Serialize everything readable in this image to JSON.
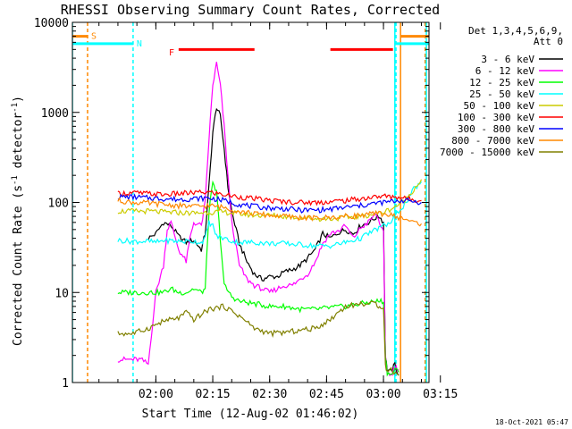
{
  "chart_data": {
    "type": "line",
    "title": "RHESSI Observing Summary Count Rates, Corrected",
    "xlabel": "Start Time (12-Aug-02 01:46:02)",
    "ylabel_main": "Corrected Count Rate (s",
    "ylabel_sup1": "-1",
    "ylabel_mid": " detector",
    "ylabel_sup2": "-1",
    "ylabel_end": ")",
    "yscale": "log",
    "ylim": [
      1,
      10000
    ],
    "xlim_minutes": [
      -8,
      86
    ],
    "yticks": [
      {
        "value": 1,
        "label": "1"
      },
      {
        "value": 10,
        "label": "10"
      },
      {
        "value": 100,
        "label": "100"
      },
      {
        "value": 1000,
        "label": "1000"
      },
      {
        "value": 10000,
        "label": "10000"
      }
    ],
    "xticks": [
      {
        "value": 14,
        "label": "02:00"
      },
      {
        "value": 29,
        "label": "02:15"
      },
      {
        "value": 44,
        "label": "02:30"
      },
      {
        "value": 59,
        "label": "02:45"
      },
      {
        "value": 74,
        "label": "03:00"
      },
      {
        "value": 89,
        "label": "03:15"
      }
    ],
    "legend_title_1": "Det 1,3,4,5,6,9,",
    "legend_title_2": "Att 0",
    "timestamp": "18-Oct-2021 05:47",
    "series": [
      {
        "name": "3 - 6 keV",
        "color": "#000000",
        "x": [
          12,
          14,
          16,
          18,
          20,
          22,
          24,
          26,
          27,
          28,
          29,
          30,
          31,
          32,
          33,
          34,
          36,
          38,
          40,
          42,
          44,
          46,
          48,
          50,
          52,
          54,
          56,
          58,
          60,
          62,
          64,
          66,
          68,
          70,
          72,
          73,
          74,
          74.5,
          75,
          76,
          77,
          78
        ],
        "y": [
          40,
          45,
          60,
          55,
          42,
          36,
          38,
          30,
          45,
          150,
          600,
          1150,
          900,
          400,
          150,
          80,
          35,
          22,
          16,
          14,
          15,
          15,
          17,
          18,
          20,
          24,
          30,
          45,
          40,
          46,
          50,
          45,
          55,
          60,
          68,
          70,
          60,
          2,
          1.4,
          1.3,
          1.6,
          1.2
        ]
      },
      {
        "name": "6 - 12 keV",
        "color": "#ff00ff",
        "x": [
          4,
          6,
          8,
          10,
          12,
          14,
          16,
          17,
          18,
          20,
          22,
          23,
          24,
          26,
          27,
          28,
          29,
          30,
          31,
          32,
          33,
          34,
          36,
          38,
          40,
          42,
          44,
          46,
          48,
          50,
          52,
          54,
          56,
          58,
          60,
          62,
          64,
          66,
          68,
          70,
          72,
          73,
          74,
          74.5,
          75,
          76,
          77,
          78
        ],
        "y": [
          1.8,
          1.8,
          1.8,
          1.8,
          1.6,
          10,
          20,
          50,
          60,
          30,
          22,
          40,
          60,
          55,
          100,
          500,
          2000,
          3500,
          2000,
          700,
          200,
          60,
          20,
          14,
          12,
          11,
          10,
          11,
          12,
          12,
          14,
          16,
          22,
          35,
          45,
          48,
          55,
          40,
          52,
          60,
          75,
          60,
          45,
          2,
          1.3,
          1.2,
          1.5,
          1.4
        ]
      },
      {
        "name": "12 - 25 keV",
        "color": "#00ff00",
        "x": [
          4,
          8,
          12,
          14,
          16,
          18,
          20,
          22,
          24,
          26,
          27,
          28,
          29,
          30,
          31,
          32,
          34,
          36,
          40,
          44,
          48,
          52,
          56,
          60,
          64,
          68,
          72,
          73,
          74,
          74.5,
          75,
          76,
          77,
          78
        ],
        "y": [
          10,
          10,
          10,
          10,
          10,
          11,
          10,
          10,
          11,
          10,
          11,
          80,
          160,
          130,
          40,
          12,
          9,
          8,
          7.5,
          7,
          7,
          6.5,
          6.5,
          6.8,
          7,
          7.5,
          8,
          8,
          8,
          2,
          1.3,
          1.2,
          1.4,
          1.3
        ]
      },
      {
        "name": "25 - 50 keV",
        "color": "#00ffff",
        "x": [
          4,
          8,
          12,
          14,
          16,
          20,
          24,
          26,
          27,
          28,
          29,
          30,
          32,
          34,
          36,
          40,
          44,
          48,
          52,
          56,
          60,
          64,
          68,
          70,
          72,
          74,
          76,
          78,
          80,
          82,
          84
        ],
        "y": [
          38,
          37,
          37,
          36,
          38,
          37,
          37,
          36,
          40,
          60,
          55,
          42,
          40,
          37,
          36,
          36,
          35,
          35,
          34,
          33,
          33,
          36,
          40,
          45,
          50,
          55,
          60,
          80,
          100,
          140,
          170
        ]
      },
      {
        "name": "50 - 100 keV",
        "color": "#cccc00",
        "x": [
          4,
          8,
          12,
          16,
          20,
          24,
          28,
          32,
          36,
          40,
          44,
          48,
          52,
          56,
          60,
          64,
          68,
          72,
          74,
          76,
          78,
          80,
          82,
          84
        ],
        "y": [
          80,
          80,
          80,
          78,
          77,
          76,
          78,
          78,
          75,
          72,
          72,
          70,
          68,
          66,
          66,
          68,
          70,
          75,
          78,
          85,
          95,
          110,
          140,
          180
        ]
      },
      {
        "name": "100 - 300 keV",
        "color": "#ff0000",
        "x": [
          4,
          8,
          12,
          16,
          20,
          24,
          28,
          32,
          36,
          40,
          44,
          48,
          52,
          56,
          60,
          64,
          68,
          72,
          74,
          76,
          78,
          80,
          82,
          84
        ],
        "y": [
          125,
          128,
          125,
          122,
          125,
          128,
          130,
          122,
          115,
          110,
          105,
          102,
          100,
          100,
          102,
          105,
          110,
          115,
          118,
          115,
          115,
          110,
          108,
          105
        ]
      },
      {
        "name": "300 - 800 keV",
        "color": "#0000ff",
        "x": [
          4,
          8,
          12,
          16,
          20,
          24,
          28,
          32,
          36,
          40,
          44,
          48,
          52,
          56,
          60,
          64,
          68,
          72,
          74,
          76,
          78,
          80,
          82,
          84
        ],
        "y": [
          115,
          115,
          112,
          110,
          108,
          110,
          112,
          105,
          95,
          90,
          87,
          85,
          82,
          82,
          84,
          88,
          92,
          98,
          100,
          102,
          105,
          105,
          103,
          100
        ]
      },
      {
        "name": "800 - 7000 keV",
        "color": "#ff8800",
        "x": [
          4,
          8,
          12,
          16,
          20,
          24,
          28,
          32,
          36,
          40,
          44,
          48,
          52,
          56,
          60,
          64,
          68,
          72,
          74,
          76,
          78,
          80,
          82,
          84
        ],
        "y": [
          105,
          100,
          98,
          95,
          92,
          90,
          92,
          88,
          80,
          75,
          72,
          70,
          68,
          67,
          68,
          70,
          72,
          75,
          75,
          72,
          68,
          65,
          60,
          58
        ]
      },
      {
        "name": "7000 - 15000 keV",
        "color": "#808000",
        "x": [
          4,
          8,
          12,
          16,
          20,
          22,
          24,
          28,
          32,
          36,
          40,
          44,
          48,
          52,
          56,
          60,
          62,
          64,
          68,
          72,
          73,
          74,
          74.5,
          75,
          76,
          78
        ],
        "y": [
          3.5,
          3.5,
          4,
          4.8,
          5.2,
          6,
          5,
          6.5,
          7,
          5.5,
          4,
          3.5,
          3.6,
          3.8,
          4,
          5,
          6,
          7,
          7.5,
          7.5,
          7,
          7,
          1.6,
          1.3,
          1.4,
          1.2
        ]
      }
    ],
    "bars": [
      {
        "name": "flare-flag-bar-1",
        "color": "#ff0000",
        "x_start": 20,
        "x_end": 40,
        "y": 5000
      },
      {
        "name": "flare-flag-bar-2",
        "color": "#ff0000",
        "x_start": 60,
        "x_end": 76.5,
        "y": 5000
      }
    ],
    "vlines": [
      {
        "name": "saa-line-1",
        "color": "#ff8800",
        "x": -4,
        "dashed": true
      },
      {
        "name": "night-line-1",
        "color": "#00ffff",
        "x": 8,
        "dashed": true
      },
      {
        "name": "night-line-2",
        "color": "#00ffff",
        "x": -8,
        "dashed": false
      },
      {
        "name": "night-line-3",
        "color": "#00ffff",
        "x": 77,
        "dashed": false
      },
      {
        "name": "night-line-4",
        "color": "#00ffff",
        "x": 77.3,
        "dashed": true
      },
      {
        "name": "saa-line-2",
        "color": "#ff8800",
        "x": 78.5,
        "dashed": false
      },
      {
        "name": "saa-line-3",
        "color": "#ff8800",
        "x": 85,
        "dashed": true
      },
      {
        "name": "night-line-5",
        "color": "#00ffff",
        "x": 85.3,
        "dashed": false
      }
    ],
    "hsegments": [
      {
        "name": "saa-flag-left",
        "color": "#ff8800",
        "x_start": -8,
        "x_end": -4,
        "y": 7000
      },
      {
        "name": "night-flag-left",
        "color": "#00ffff",
        "x_start": -8,
        "x_end": 8,
        "y": 5800
      },
      {
        "name": "saa-flag-right",
        "color": "#ff8800",
        "x_start": 78.5,
        "x_end": 86,
        "y": 7000
      },
      {
        "name": "night-flag-right",
        "color": "#00ffff",
        "x_start": 77,
        "x_end": 86,
        "y": 5800
      }
    ],
    "flag_labels": [
      {
        "text": "S",
        "color": "#ff8800",
        "x": -4,
        "y": 7200
      },
      {
        "text": "N",
        "color": "#00ffff",
        "x": 8,
        "y": 5900
      },
      {
        "text": "F",
        "color": "#ff0000",
        "x": 16.5,
        "y": 4700
      }
    ]
  }
}
